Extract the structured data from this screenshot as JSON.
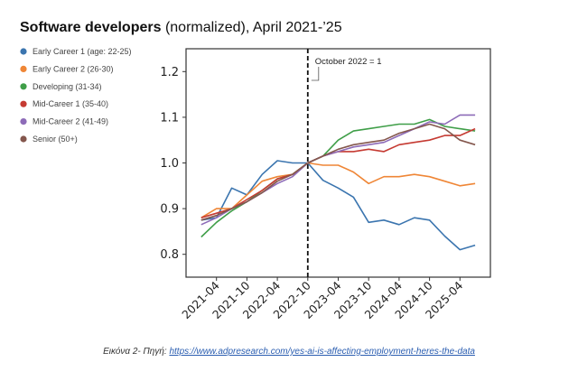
{
  "chart_data": {
    "type": "line",
    "title_bold": "Software developers",
    "title_rest": " (normalized), April 2021-’25",
    "xlabel": "",
    "ylabel": "",
    "ylim": [
      0.75,
      1.25
    ],
    "yticks": [
      0.8,
      0.9,
      1.0,
      1.1,
      1.2
    ],
    "ytick_labels": [
      "0.8",
      "0.9",
      "1.0",
      "1.1",
      "1.2"
    ],
    "x_unit": "months since 2021-01",
    "xlim": [
      -3,
      57
    ],
    "xticks": [
      3,
      9,
      15,
      21,
      27,
      33,
      39,
      45,
      51
    ],
    "xtick_labels": [
      "2021-04",
      "2021-10",
      "2022-04",
      "2022-10",
      "2023-04",
      "2023-10",
      "2024-04",
      "2024-10",
      "2025-04"
    ],
    "reference_line": {
      "x": 21,
      "label": "October 2022 = 1"
    },
    "x": [
      0,
      3,
      6,
      9,
      12,
      15,
      18,
      21,
      24,
      27,
      30,
      33,
      36,
      39,
      42,
      45,
      48,
      51,
      54
    ],
    "series": [
      {
        "name": "Early Career 1 (age: 22-25)",
        "color": "#3b75af",
        "values": [
          0.875,
          0.88,
          0.945,
          0.93,
          0.975,
          1.005,
          1.0,
          1.0,
          0.962,
          0.945,
          0.925,
          0.87,
          0.875,
          0.865,
          0.88,
          0.875,
          0.84,
          0.81,
          0.82
        ]
      },
      {
        "name": "Early Career 2 (26-30)",
        "color": "#ef8636",
        "values": [
          0.88,
          0.9,
          0.9,
          0.93,
          0.96,
          0.97,
          0.975,
          1.0,
          0.995,
          0.995,
          0.98,
          0.955,
          0.97,
          0.97,
          0.975,
          0.97,
          0.96,
          0.95,
          0.955
        ]
      },
      {
        "name": "Developing (31-34)",
        "color": "#3f9e48",
        "values": [
          0.838,
          0.87,
          0.895,
          0.915,
          0.94,
          0.965,
          0.975,
          1.0,
          1.015,
          1.05,
          1.07,
          1.075,
          1.08,
          1.085,
          1.085,
          1.095,
          1.08,
          1.075,
          1.07
        ]
      },
      {
        "name": "Mid-Career 1 (35-40)",
        "color": "#c53a32",
        "values": [
          0.88,
          0.89,
          0.9,
          0.92,
          0.94,
          0.965,
          0.975,
          1.0,
          1.015,
          1.025,
          1.025,
          1.03,
          1.025,
          1.04,
          1.045,
          1.05,
          1.06,
          1.06,
          1.075
        ]
      },
      {
        "name": "Mid-Career 2 (41-49)",
        "color": "#8d6bb8",
        "values": [
          0.865,
          0.88,
          0.9,
          0.915,
          0.935,
          0.955,
          0.97,
          1.0,
          1.015,
          1.025,
          1.035,
          1.04,
          1.045,
          1.06,
          1.075,
          1.09,
          1.085,
          1.105,
          1.105
        ]
      },
      {
        "name": "Senior (50+)",
        "color": "#84574d",
        "values": [
          0.875,
          0.885,
          0.9,
          0.915,
          0.935,
          0.96,
          0.975,
          1.0,
          1.015,
          1.03,
          1.04,
          1.045,
          1.05,
          1.065,
          1.075,
          1.085,
          1.075,
          1.05,
          1.04
        ]
      }
    ],
    "legend_position": "top-left"
  },
  "caption": {
    "prefix": "Εικόνα 2- Πηγή: ",
    "link": "https://www.adpresearch.com/yes-ai-is-affecting-employment-heres-the-data"
  }
}
